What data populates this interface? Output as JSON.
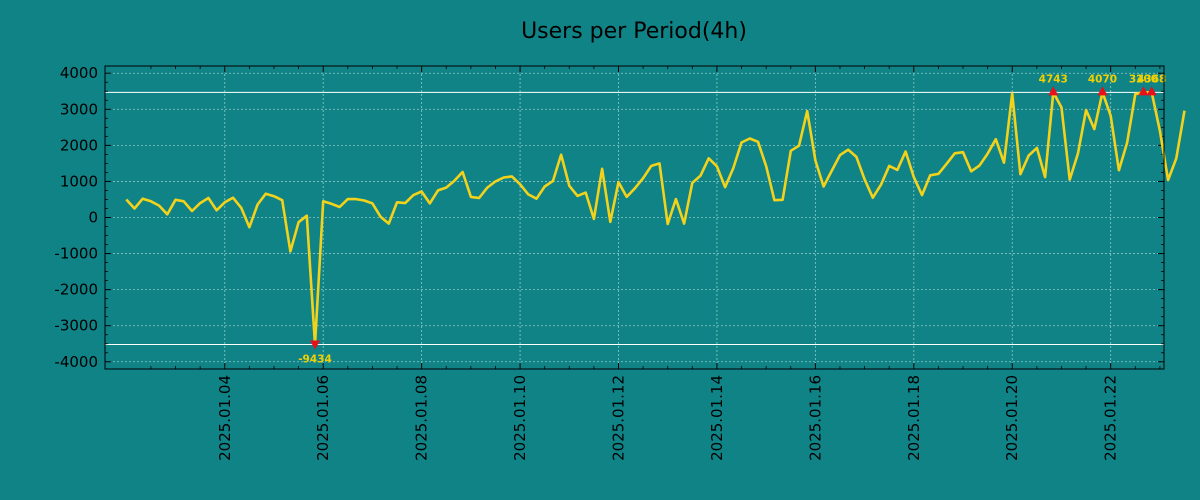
{
  "chart_data": {
    "type": "line",
    "title": "Users per Period(4h)",
    "xlabel": "",
    "ylabel": "",
    "x_start": "2025-01-02",
    "x_end": "2025-01-23 12:00",
    "period_hours": 4,
    "xlim": [
      -2.6,
      126.5
    ],
    "ylim": [
      -4200,
      4200
    ],
    "x_ticks": [
      {
        "label": "2025.01.04",
        "index": 12
      },
      {
        "label": "2025.01.06",
        "index": 24
      },
      {
        "label": "2025.01.08",
        "index": 36
      },
      {
        "label": "2025.01.10",
        "index": 48
      },
      {
        "label": "2025.01.12",
        "index": 60
      },
      {
        "label": "2025.01.14",
        "index": 72
      },
      {
        "label": "2025.01.16",
        "index": 84
      },
      {
        "label": "2025.01.18",
        "index": 96
      },
      {
        "label": "2025.01.20",
        "index": 108
      },
      {
        "label": "2025.01.22",
        "index": 120
      }
    ],
    "y_ticks": [
      {
        "label": "4000",
        "value": 4000
      },
      {
        "label": "3000",
        "value": 3000
      },
      {
        "label": "2000",
        "value": 2000
      },
      {
        "label": "1000",
        "value": 1000
      },
      {
        "label": "0",
        "value": 0
      },
      {
        "label": "-1000",
        "value": -1000
      },
      {
        "label": "-2000",
        "value": -2000
      },
      {
        "label": "-3000",
        "value": -3000
      },
      {
        "label": "-4000",
        "value": -4000
      }
    ],
    "grid": true,
    "thresholds": [
      3470,
      -3520
    ],
    "series": [
      {
        "name": "Users",
        "color": "#f2d21b",
        "values": [
          500,
          250,
          520,
          450,
          330,
          90,
          490,
          450,
          180,
          400,
          540,
          200,
          420,
          550,
          270,
          -270,
          360,
          660,
          590,
          480,
          -940,
          -130,
          50,
          -3520,
          450,
          380,
          290,
          510,
          510,
          470,
          390,
          20,
          -170,
          420,
          400,
          620,
          720,
          390,
          750,
          830,
          1020,
          1260,
          570,
          540,
          830,
          1000,
          1110,
          1140,
          920,
          640,
          520,
          860,
          1010,
          1740,
          880,
          600,
          690,
          -40,
          1350,
          -120,
          980,
          570,
          810,
          1090,
          1430,
          1500,
          -180,
          510,
          -170,
          960,
          1160,
          1640,
          1420,
          840,
          1370,
          2080,
          2190,
          2100,
          1420,
          480,
          490,
          1850,
          1990,
          2950,
          1580,
          860,
          1300,
          1730,
          1880,
          1680,
          1060,
          550,
          910,
          1430,
          1320,
          1830,
          1120,
          620,
          1170,
          1210,
          1490,
          1780,
          1810,
          1280,
          1440,
          1770,
          2170,
          1520,
          3440,
          1200,
          1720,
          1930,
          1120,
          3470,
          3050,
          1050,
          1770,
          2980,
          2450,
          3470,
          2820,
          1310,
          2070,
          3420,
          3470,
          3470,
          2400,
          1040,
          1640,
          2960
        ]
      }
    ],
    "annotations": [
      {
        "label": "-9434",
        "index": 23,
        "value": -3520,
        "marker": "down"
      },
      {
        "label": "4743",
        "index": 113,
        "value": 3470,
        "marker": "up"
      },
      {
        "label": "4070",
        "index": 119,
        "value": 3470,
        "marker": "up"
      },
      {
        "label": "3200",
        "index": 124,
        "value": 3470,
        "marker": "up"
      },
      {
        "label": "4368",
        "index": 125,
        "value": 3470,
        "marker": "up"
      }
    ]
  }
}
